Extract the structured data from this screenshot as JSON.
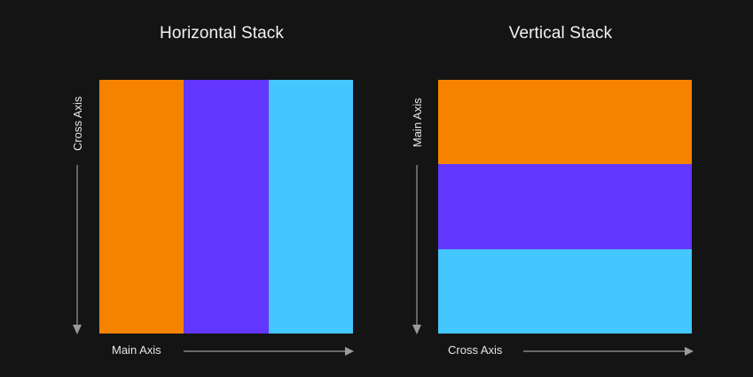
{
  "horizontal_stack": {
    "title": "Horizontal Stack",
    "main_axis_label": "Main Axis",
    "cross_axis_label": "Cross Axis",
    "blocks": [
      {
        "color": "#f78200"
      },
      {
        "color": "#6236ff"
      },
      {
        "color": "#44c6ff"
      }
    ]
  },
  "vertical_stack": {
    "title": "Vertical Stack",
    "main_axis_label": "Main Axis",
    "cross_axis_label": "Cross Axis",
    "blocks": [
      {
        "color": "#f78200"
      },
      {
        "color": "#6236ff"
      },
      {
        "color": "#44c6ff"
      }
    ]
  },
  "colors": {
    "background": "#141414",
    "arrow": "#9a9a9a",
    "text": "#e6e6e6"
  }
}
